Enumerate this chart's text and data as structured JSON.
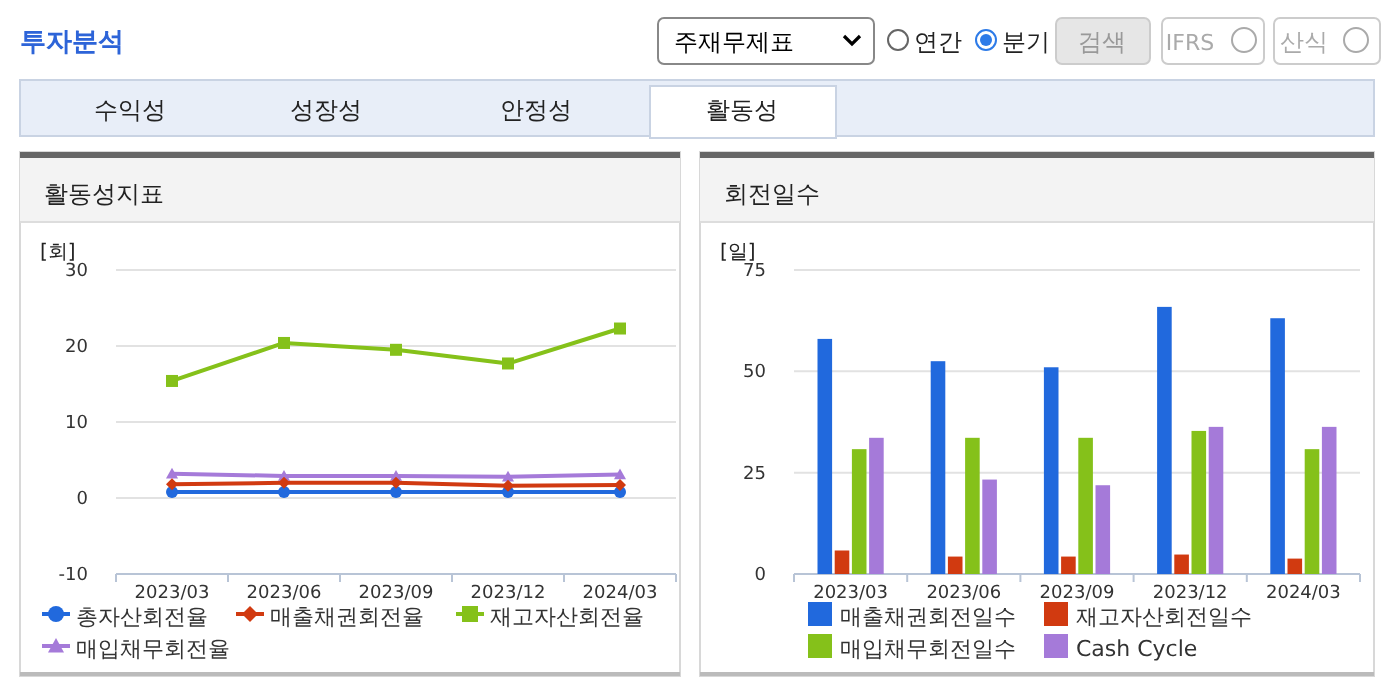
{
  "chart_data": [
    {
      "type": "line",
      "title": "활동성지표",
      "ylabel": "[회]",
      "categories": [
        "2023/03",
        "2023/06",
        "2023/09",
        "2023/12",
        "2024/03"
      ],
      "ylim": [
        -10,
        30
      ],
      "yticks": [
        -10,
        0,
        10,
        20,
        30
      ],
      "grid": "y",
      "legend": "bottom",
      "annotations": [
        "투자분석",
        "주재무제표",
        "연간",
        "분기",
        "검색",
        "IFRS",
        "산식",
        "수익성",
        "성장성",
        "안정성",
        "활동성"
      ],
      "series": [
        {
          "name": "총자산회전율",
          "color": "#2169dd",
          "marker": "circle",
          "values": [
            0.8,
            0.8,
            0.8,
            0.8,
            0.8
          ]
        },
        {
          "name": "매출채권회전율",
          "color": "#d13a10",
          "marker": "diamond",
          "values": [
            1.8,
            2.0,
            2.0,
            1.6,
            1.7
          ]
        },
        {
          "name": "재고자산회전율",
          "color": "#85c11a",
          "marker": "square",
          "values": [
            15.4,
            20.4,
            19.5,
            17.7,
            22.3
          ]
        },
        {
          "name": "매입채무회전율",
          "color": "#a57ad9",
          "marker": "triangle",
          "values": [
            3.2,
            2.9,
            2.9,
            2.8,
            3.1
          ]
        }
      ]
    },
    {
      "type": "bar",
      "title": "회전일수",
      "ylabel": "[일]",
      "categories": [
        "2023/03",
        "2023/06",
        "2023/09",
        "2023/12",
        "2024/03"
      ],
      "ylim": [
        0,
        75
      ],
      "yticks": [
        0,
        25,
        50,
        75
      ],
      "grid": "y",
      "legend": "bottom",
      "series": [
        {
          "name": "매출채권회전일수",
          "color": "#2169dd",
          "values": [
            58.0,
            52.5,
            51.0,
            65.9,
            63.1
          ]
        },
        {
          "name": "재고자산회전일수",
          "color": "#d13a10",
          "values": [
            5.8,
            4.3,
            4.3,
            4.8,
            3.8
          ]
        },
        {
          "name": "매입채무회전일수",
          "color": "#85c11a",
          "values": [
            30.8,
            33.6,
            33.6,
            35.3,
            30.8
          ]
        },
        {
          "name": "Cash Cycle",
          "color": "#a57ad9",
          "values": [
            33.6,
            23.3,
            21.9,
            36.3,
            36.3
          ]
        }
      ]
    }
  ]
}
